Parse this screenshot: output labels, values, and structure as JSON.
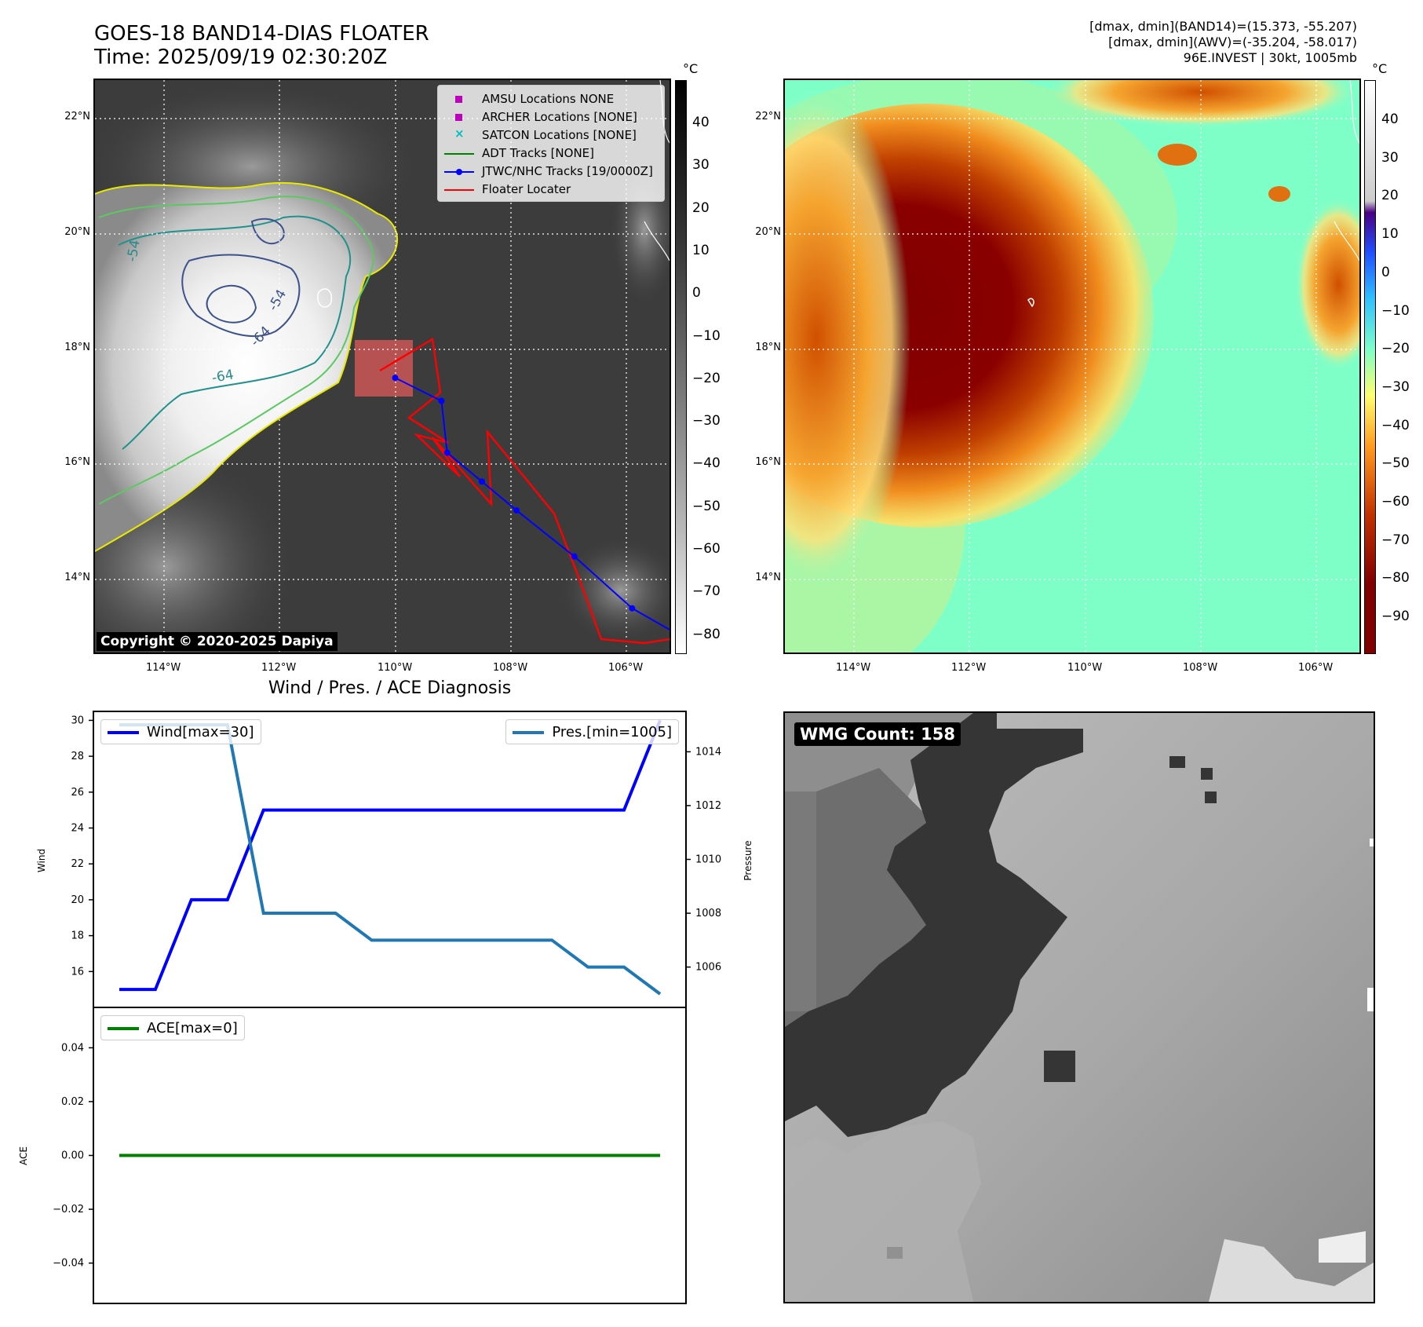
{
  "header": {
    "title_line1": "GOES-18 BAND14-DIAS FLOATER",
    "title_line2": "Time: 2025/09/19 02:30:20Z",
    "info_line1": "[dmax, dmin](BAND14)=(15.373, -55.207)",
    "info_line2": "[dmax, dmin](AWV)=(-35.204, -58.017)",
    "info_line3": "96E.INVEST | 30kt, 1005mb"
  },
  "map_axes": {
    "lat_ticks": [
      "22°N",
      "20°N",
      "18°N",
      "16°N",
      "14°N"
    ],
    "lon_ticks": [
      "114°W",
      "112°W",
      "110°W",
      "108°W",
      "106°W"
    ],
    "colorbar_unit": "°C"
  },
  "ir_panel": {
    "colorbar_ticks": [
      "40",
      "30",
      "20",
      "10",
      "0",
      "−10",
      "−20",
      "−30",
      "−40",
      "−50",
      "−60",
      "−70",
      "−80"
    ],
    "contour_labels": [
      "-54",
      "-64",
      "-54",
      "-64"
    ],
    "copyright": "Copyright © 2020-2025 Dapiya",
    "legend": [
      {
        "label": "AMSU Locations NONE",
        "symbol": "square",
        "color": "#bf00bf"
      },
      {
        "label": "ARCHER Locations [NONE]",
        "symbol": "square",
        "color": "#bf00bf"
      },
      {
        "label": "SATCON Locations [NONE]",
        "symbol": "cross",
        "color": "#00bfbf"
      },
      {
        "label": "ADT Tracks [NONE]",
        "symbol": "line",
        "color": "#008000"
      },
      {
        "label": "JTWC/NHC Tracks [19/0000Z]",
        "symbol": "line-dot",
        "color": "#0000ff"
      },
      {
        "label": "Floater Locater",
        "symbol": "line",
        "color": "#ff0000"
      }
    ]
  },
  "awv_panel": {
    "colorbar_ticks": [
      "40",
      "30",
      "20",
      "10",
      "0",
      "−10",
      "−20",
      "−30",
      "−40",
      "−50",
      "−60",
      "−70",
      "−80",
      "−90"
    ]
  },
  "diag": {
    "title": "Wind / Pres. / ACE Diagnosis",
    "wind_ylabel": "Wind",
    "pres_ylabel": "Pressure",
    "ace_ylabel": "ACE",
    "wind_legend": "Wind[max=30]",
    "pres_legend": "Pres.[min=1005]",
    "ace_legend": "ACE[max=0]",
    "wind_ticks": [
      "30",
      "28",
      "26",
      "24",
      "22",
      "20",
      "18",
      "16"
    ],
    "pres_ticks": [
      "1014",
      "1012",
      "1010",
      "1008",
      "1006"
    ],
    "ace_ticks": [
      "0.04",
      "0.02",
      "0.00",
      "−0.02",
      "−0.04"
    ]
  },
  "wmg": {
    "label": "WMG Count: 158"
  },
  "colors": {
    "wind": "#0000ff",
    "pressure": "#1f77b4",
    "ace": "#008000",
    "jtwc_track": "#0000ff",
    "floater": "#ff0000"
  },
  "chart_data": [
    {
      "type": "line",
      "title": "Wind / Pres. / ACE Diagnosis",
      "x": [
        0,
        1,
        2,
        3,
        4,
        5,
        6,
        7,
        8,
        9,
        10,
        11,
        12,
        13,
        14,
        15
      ],
      "series": [
        {
          "name": "Wind[max=30]",
          "axis": "left",
          "values": [
            15,
            15,
            20,
            20,
            25,
            25,
            25,
            25,
            25,
            25,
            25,
            25,
            25,
            25,
            25,
            30
          ]
        },
        {
          "name": "Pres.[min=1005]",
          "axis": "right",
          "values": [
            1015,
            1015,
            1015,
            1015,
            1008,
            1008,
            1008,
            1007,
            1007,
            1007,
            1007,
            1007,
            1007,
            1006,
            1006,
            1005
          ]
        }
      ],
      "ylabel": "Wind",
      "y2label": "Pressure",
      "ylim": [
        14,
        30.5
      ],
      "y2lim": [
        1004.5,
        1015.5
      ]
    },
    {
      "type": "line",
      "x": [
        0,
        1,
        2,
        3,
        4,
        5,
        6,
        7,
        8,
        9,
        10,
        11,
        12,
        13,
        14,
        15
      ],
      "series": [
        {
          "name": "ACE[max=0]",
          "values": [
            0,
            0,
            0,
            0,
            0,
            0,
            0,
            0,
            0,
            0,
            0,
            0,
            0,
            0,
            0,
            0
          ]
        }
      ],
      "ylabel": "ACE",
      "ylim": [
        -0.055,
        0.055
      ]
    },
    {
      "type": "line",
      "title": "JTWC/NHC Tracks [19/0000Z]",
      "x_unit": "°W",
      "y_unit": "°N",
      "series": [
        {
          "name": "JTWC/NHC Tracks [19/0000Z]",
          "lon": [
            -110.0,
            -109.2,
            -109.1,
            -108.5,
            -107.9,
            -106.9,
            -105.9,
            -105.2
          ],
          "lat": [
            17.5,
            17.1,
            16.2,
            15.7,
            15.2,
            14.4,
            13.5,
            13.1
          ]
        }
      ]
    }
  ]
}
